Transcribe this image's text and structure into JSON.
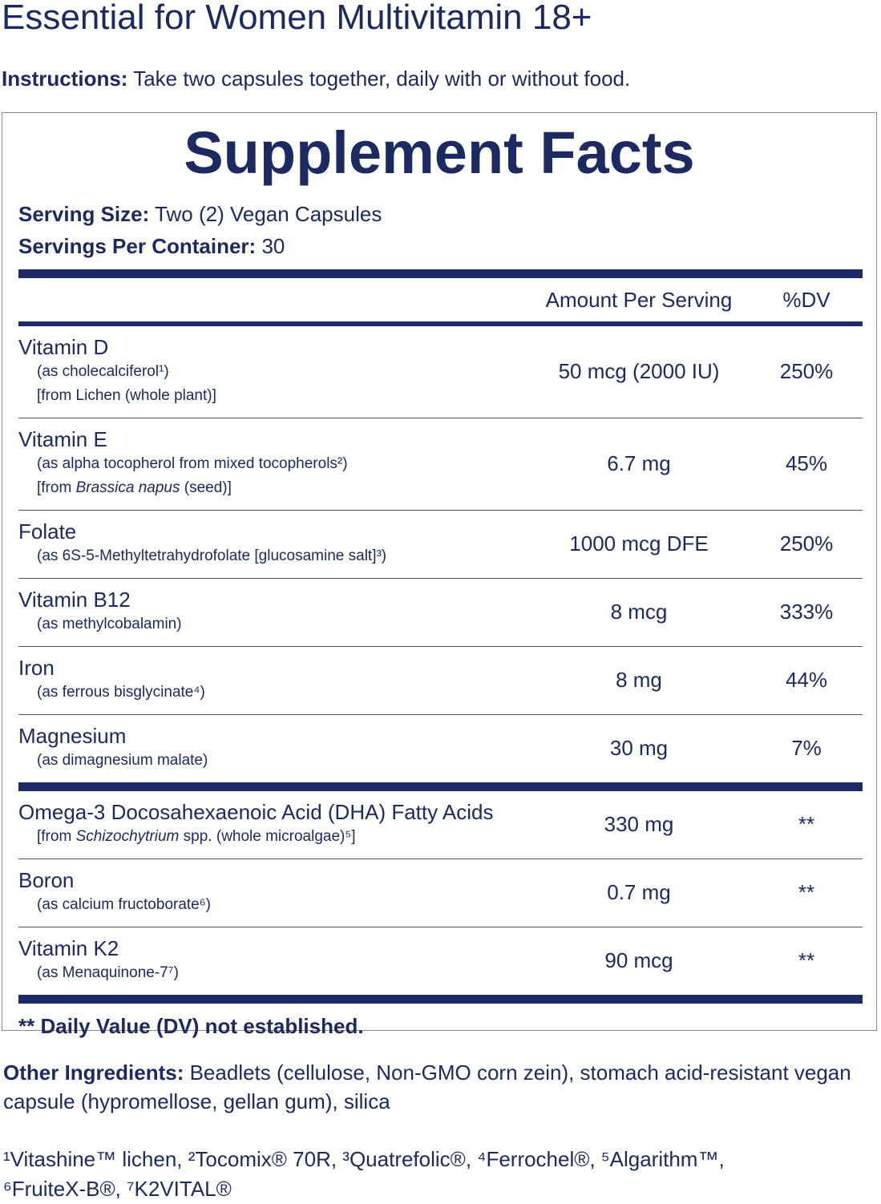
{
  "title": "Essential for Women Multivitamin 18+",
  "instructions": {
    "label": "Instructions:",
    "text": "Take two capsules together, daily with or without food."
  },
  "facts": {
    "title": "Supplement Facts",
    "serving_size": {
      "label": "Serving Size:",
      "text": "Two (2) Vegan Capsules"
    },
    "servings_per_container": {
      "label": "Servings Per Container:",
      "text": "30"
    },
    "columns": {
      "amount": "Amount Per Serving",
      "dv": "%DV"
    },
    "sections": [
      {
        "rows": [
          {
            "name": "Vitamin D",
            "notes": [
              [
                {
                  "text": "(as cholecalciferol¹)"
                }
              ],
              [
                {
                  "text": "[from Lichen (whole plant)]"
                }
              ]
            ],
            "amount": "50 mcg (2000 IU)",
            "dv": "250%"
          },
          {
            "name": "Vitamin E",
            "notes": [
              [
                {
                  "text": "(as alpha tocopherol from mixed tocopherols²)"
                }
              ],
              [
                {
                  "text": "[from "
                },
                {
                  "text": "Brassica napus",
                  "italic": true
                },
                {
                  "text": " (seed)]"
                }
              ]
            ],
            "amount": "6.7 mg",
            "dv": "45%"
          },
          {
            "name": "Folate",
            "notes": [
              [
                {
                  "text": "(as 6S-5-Methyltetrahydrofolate [glucosamine salt]³)"
                }
              ]
            ],
            "amount": "1000 mcg DFE",
            "dv": "250%"
          },
          {
            "name": "Vitamin B12",
            "notes": [
              [
                {
                  "text": "(as methylcobalamin)"
                }
              ]
            ],
            "amount": "8 mcg",
            "dv": "333%"
          },
          {
            "name": "Iron",
            "notes": [
              [
                {
                  "text": "(as ferrous bisglycinate⁴)"
                }
              ]
            ],
            "amount": "8 mg",
            "dv": "44%"
          },
          {
            "name": "Magnesium",
            "notes": [
              [
                {
                  "text": "(as dimagnesium malate)"
                }
              ]
            ],
            "amount": "30 mg",
            "dv": "7%"
          }
        ]
      },
      {
        "rows": [
          {
            "name": "Omega-3 Docosahexaenoic Acid (DHA) Fatty Acids",
            "notes": [
              [
                {
                  "text": "[from "
                },
                {
                  "text": "Schizochytrium",
                  "italic": true
                },
                {
                  "text": " spp. (whole microalgae)⁵]"
                }
              ]
            ],
            "amount": "330 mg",
            "dv": "**"
          },
          {
            "name": "Boron",
            "notes": [
              [
                {
                  "text": "(as calcium fructoborate⁶)"
                }
              ]
            ],
            "amount": "0.7 mg",
            "dv": "**"
          },
          {
            "name": "Vitamin K2",
            "notes": [
              [
                {
                  "text": "(as Menaquinone-7⁷)"
                }
              ]
            ],
            "amount": "90 mcg",
            "dv": "**"
          }
        ]
      }
    ],
    "footnote": "** Daily Value (DV) not established."
  },
  "other_ingredients": {
    "label": "Other Ingredients:",
    "text": "Beadlets (cellulose, Non-GMO corn zein), stomach acid-resistant vegan capsule (hypromellose, gellan gum), silica"
  },
  "trademarks": "¹Vitashine™ lichen, ²Tocomix® 70R, ³Quatrefolic®, ⁴Ferrochel®, ⁵Algarithm™, ⁶FruiteX-B®, ⁷K2VITAL®"
}
